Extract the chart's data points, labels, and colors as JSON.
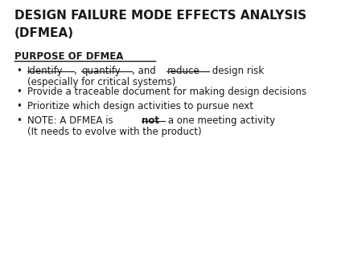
{
  "background_color": "#ffffff",
  "title_line1": "DESIGN FAILURE MODE EFFECTS ANALYSIS",
  "title_line2": "(DFMEA)",
  "section_header": "PURPOSE OF DFMEA",
  "bullet_items": [
    {
      "parts": [
        {
          "text": "Identify",
          "underline": true,
          "bold": false
        },
        {
          "text": ", ",
          "underline": false,
          "bold": false
        },
        {
          "text": "quantify",
          "underline": true,
          "bold": false
        },
        {
          "text": ", and ",
          "underline": false,
          "bold": false
        },
        {
          "text": "reduce",
          "underline": true,
          "bold": false
        },
        {
          "text": " design risk",
          "underline": false,
          "bold": false
        }
      ],
      "line2": "(especially for critical systems)"
    },
    {
      "parts": [
        {
          "text": "Provide a traceable document for making design decisions",
          "underline": false,
          "bold": false
        }
      ],
      "line2": null
    },
    {
      "parts": [
        {
          "text": "Prioritize which design activities to pursue next",
          "underline": false,
          "bold": false
        }
      ],
      "line2": null
    },
    {
      "parts": [
        {
          "text": "NOTE: A DFMEA is ",
          "underline": false,
          "bold": false
        },
        {
          "text": "not",
          "underline": true,
          "bold": true
        },
        {
          "text": " a one meeting activity",
          "underline": false,
          "bold": false
        }
      ],
      "line2": "(It needs to evolve with the product)"
    }
  ],
  "title_fontsize": 11,
  "header_fontsize": 8.5,
  "body_fontsize": 8.5,
  "text_color": "#1a1a1a",
  "font_family": "DejaVu Sans"
}
